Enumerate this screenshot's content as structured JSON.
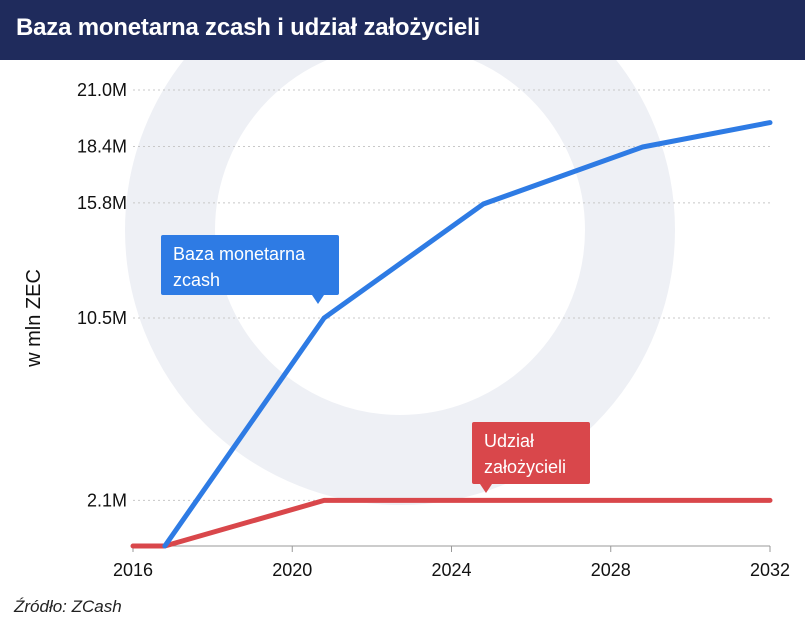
{
  "header": {
    "title": "Baza monetarna zcash i udział założycieli"
  },
  "source": {
    "text": "Źródło: ZCash"
  },
  "colors": {
    "header_bg": "#1f2b5c",
    "blue": "#2e7be4",
    "red": "#d9474b",
    "grid": "#c8c8c8"
  },
  "chart_data": {
    "type": "line",
    "title": "Baza monetarna zcash i udział założycieli",
    "ylabel": "w mln ZEC",
    "xlabel": "",
    "grid": true,
    "x_ticks": [
      2016,
      2020,
      2024,
      2028,
      2032
    ],
    "x_tick_labels": [
      "2016",
      "2020",
      "2024",
      "2028",
      "2032"
    ],
    "y_ticks": [
      2.1,
      10.5,
      15.8,
      18.4,
      21.0
    ],
    "y_tick_labels": [
      "2.1M",
      "10.5M",
      "15.8M",
      "18.4M",
      "21.0M"
    ],
    "xlim": [
      2016,
      2032
    ],
    "ylim": [
      0,
      21.0
    ],
    "series": [
      {
        "name": "Baza monetarna zcash",
        "color": "#2e7be4",
        "x": [
          2016.8,
          2020.8,
          2024.8,
          2028.8,
          2032
        ],
        "y": [
          0,
          10.5,
          15.75,
          18.375,
          19.5
        ]
      },
      {
        "name": "Udział założycieli",
        "color": "#d9474b",
        "x": [
          2016,
          2016.8,
          2020.8,
          2032
        ],
        "y": [
          0,
          0,
          2.1,
          2.1
        ]
      }
    ],
    "annotations": [
      {
        "lines": [
          "Baza monetarna",
          "zcash"
        ],
        "series": 0
      },
      {
        "lines": [
          "Udział",
          "założycieli"
        ],
        "series": 1
      }
    ]
  }
}
